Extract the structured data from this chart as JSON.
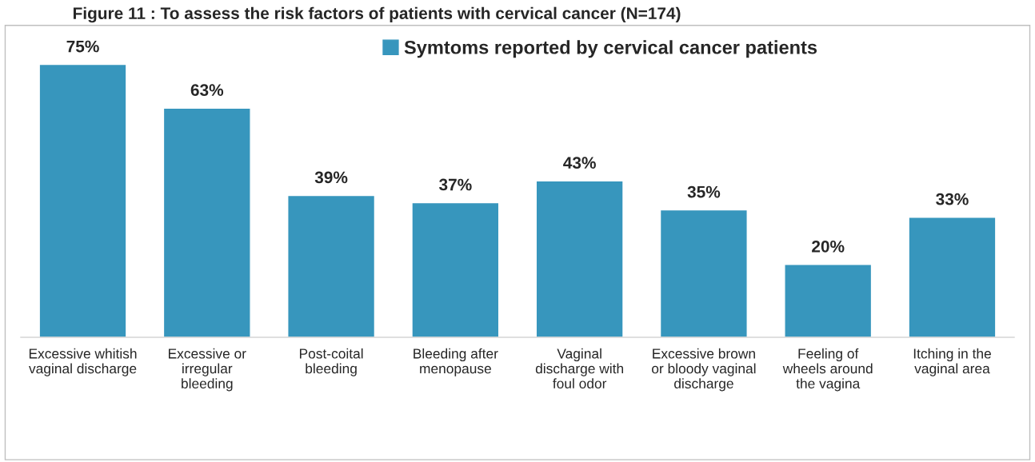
{
  "chart_data": {
    "type": "bar",
    "title": "Figure 11 : To assess the risk factors of patients with cervical cancer (N=174)",
    "categories": [
      "Excessive whitish\nvaginal discharge",
      "Excessive or\nirregular\nbleeding",
      "Post-coital\nbleeding",
      "Bleeding after\nmenopause",
      "Vaginal\ndischarge with\nfoul odor",
      "Excessive brown\nor bloody vaginal\ndischarge",
      "Feeling of\nwheels around\nthe vagina",
      "Itching in the\nvaginal area"
    ],
    "series": [
      {
        "name": "Symtoms reported by cervical cancer patients",
        "color": "#3796bd",
        "values": [
          75,
          63,
          39,
          37,
          43,
          35,
          20,
          33
        ],
        "value_labels": [
          "75%",
          "63%",
          "39%",
          "37%",
          "43%",
          "35%",
          "20%",
          "33%"
        ]
      }
    ],
    "legend": "top",
    "grid": false
  }
}
